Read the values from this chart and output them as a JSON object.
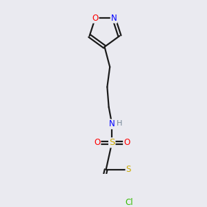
{
  "bg_color": "#eaeaf0",
  "atom_colors": {
    "O": "#ff0000",
    "N": "#0000ff",
    "S_sulfo": "#ccaa00",
    "S_thio": "#ccaa00",
    "Cl": "#33bb00",
    "C": "#1a1a1a",
    "H": "#778899"
  },
  "bond_color": "#1a1a1a",
  "lw": 1.6
}
